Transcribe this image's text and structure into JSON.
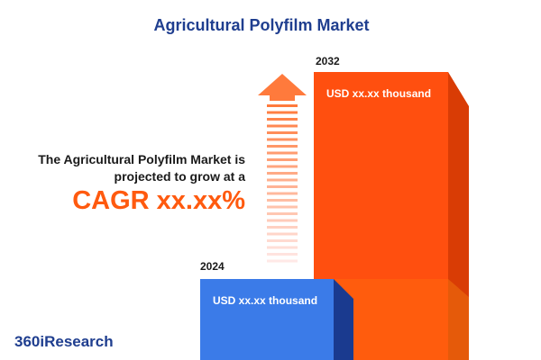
{
  "header": {
    "title": "Agricultural Polyfilm Market"
  },
  "bars": [
    {
      "year": "2024",
      "label": "USD xx.xx thousand"
    },
    {
      "year": "2032",
      "label": "USD xx.xx thousand"
    }
  ],
  "statement": {
    "line1": "The Agricultural Polyfilm Market is",
    "line2": "projected to grow at a",
    "cagr": "CAGR xx.xx%"
  },
  "brand": "360iResearch"
}
